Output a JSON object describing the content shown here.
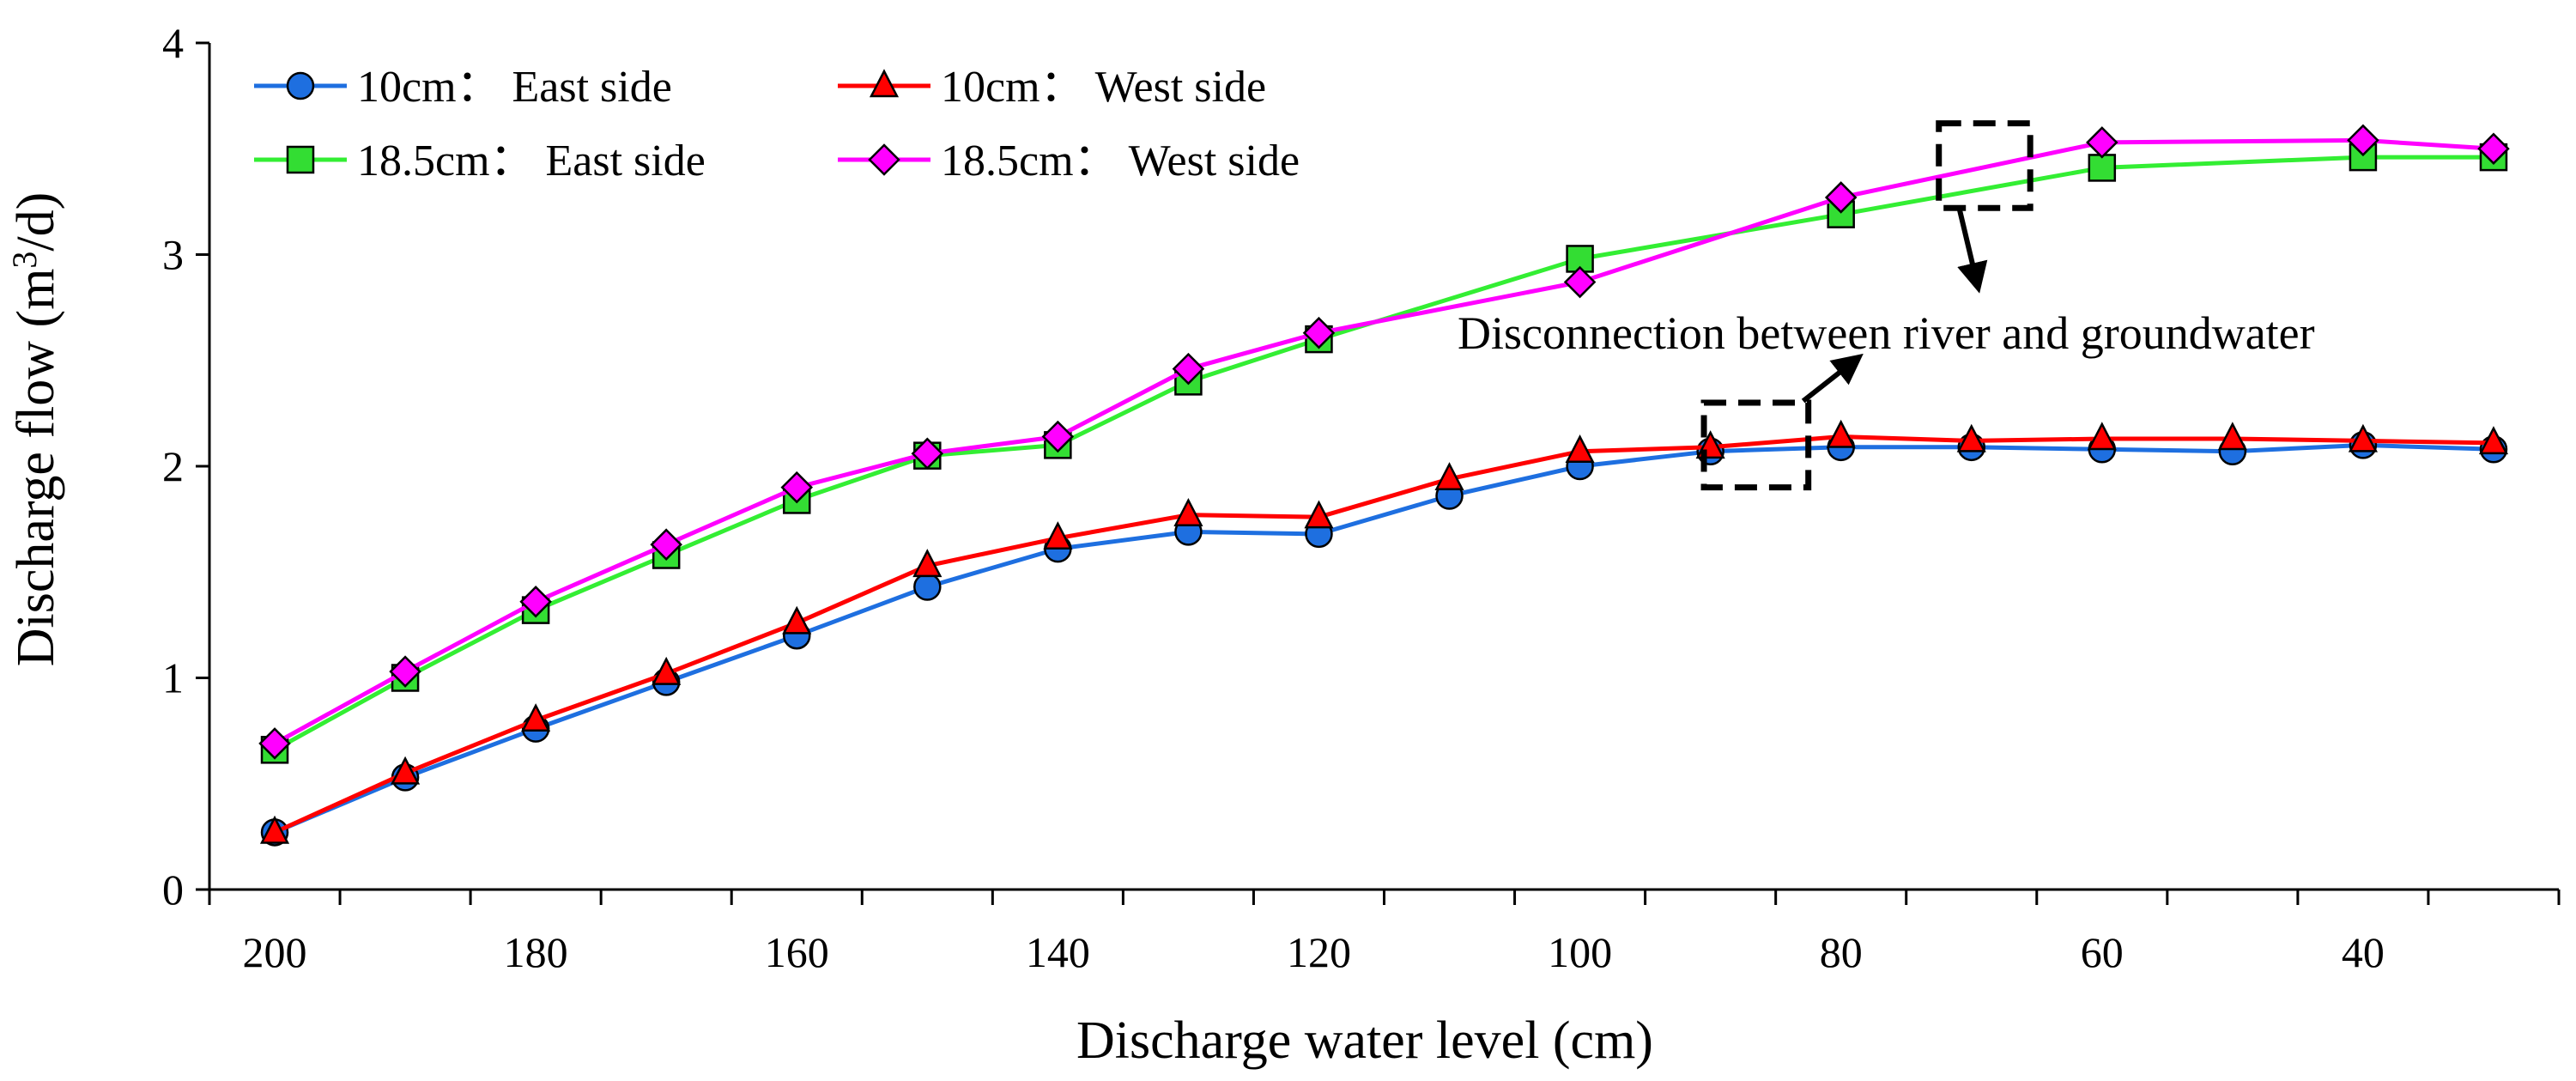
{
  "chart_data": {
    "type": "line",
    "title": "",
    "xlabel": "Discharge water level (cm)",
    "ylabel_prefix": "Discharge flow (m",
    "ylabel_sup": "3",
    "ylabel_suffix": "/d)",
    "x": [
      200,
      190,
      180,
      170,
      160,
      150,
      140,
      130,
      120,
      110,
      100,
      90,
      80,
      70,
      60,
      50,
      40,
      30
    ],
    "xlim": [
      205,
      25
    ],
    "ylim": [
      0,
      4
    ],
    "x_ticks": [
      200,
      180,
      160,
      140,
      120,
      100,
      80,
      60,
      40
    ],
    "y_ticks": [
      0,
      1,
      2,
      3,
      4
    ],
    "series": [
      {
        "name": "10cm： East side",
        "color": "#1e6fe0",
        "marker": "circle",
        "marker_color": "#1e6fe0",
        "x": [
          200,
          190,
          180,
          170,
          160,
          150,
          140,
          130,
          120,
          110,
          100,
          90,
          80,
          70,
          60,
          50,
          40,
          30
        ],
        "values": [
          0.27,
          0.53,
          0.76,
          0.98,
          1.2,
          1.43,
          1.61,
          1.69,
          1.68,
          1.86,
          2.0,
          2.07,
          2.09,
          2.09,
          2.08,
          2.07,
          2.1,
          2.08
        ]
      },
      {
        "name": "10cm： West side",
        "color": "#ff0000",
        "marker": "triangle",
        "marker_color": "#ff0000",
        "x": [
          200,
          190,
          180,
          170,
          160,
          150,
          140,
          130,
          120,
          110,
          100,
          90,
          80,
          70,
          60,
          50,
          40,
          30
        ],
        "values": [
          0.27,
          0.55,
          0.8,
          1.02,
          1.26,
          1.53,
          1.66,
          1.77,
          1.76,
          1.94,
          2.07,
          2.09,
          2.14,
          2.12,
          2.13,
          2.13,
          2.12,
          2.11
        ]
      },
      {
        "name": "18.5cm： East side",
        "color": "#33ee33",
        "marker": "square",
        "marker_color": "#33dd33",
        "x": [
          200,
          190,
          180,
          170,
          160,
          150,
          140,
          100,
          80,
          60,
          40,
          30,
          130,
          120
        ],
        "values_by_x": true,
        "points": [
          [
            200,
            0.66
          ],
          [
            190,
            1.0
          ],
          [
            180,
            1.32
          ],
          [
            170,
            1.58
          ],
          [
            160,
            1.84
          ],
          [
            150,
            2.05
          ],
          [
            140,
            2.1
          ],
          [
            130,
            2.4
          ],
          [
            120,
            2.6
          ],
          [
            100,
            2.98
          ],
          [
            80,
            3.19
          ],
          [
            60,
            3.41
          ],
          [
            40,
            3.46
          ],
          [
            30,
            3.46
          ]
        ]
      },
      {
        "name": "18.5cm： West side",
        "color": "#ff00ff",
        "marker": "diamond",
        "marker_color": "#ff00ff",
        "values_by_x": true,
        "points": [
          [
            200,
            0.69
          ],
          [
            190,
            1.03
          ],
          [
            180,
            1.36
          ],
          [
            170,
            1.63
          ],
          [
            160,
            1.9
          ],
          [
            150,
            2.06
          ],
          [
            140,
            2.14
          ],
          [
            130,
            2.46
          ],
          [
            120,
            2.63
          ],
          [
            100,
            2.87
          ],
          [
            80,
            3.27
          ],
          [
            60,
            3.53
          ],
          [
            40,
            3.54
          ],
          [
            30,
            3.5
          ]
        ]
      }
    ],
    "legend": "top-left",
    "annotations": [
      {
        "text": "Disconnection between river and groundwater",
        "boxes": [
          {
            "x": [
              90.5,
              82.5
            ],
            "y": [
              1.9,
              2.3
            ]
          },
          {
            "x": [
              72.5,
              65.5
            ],
            "y": [
              3.22,
              3.62
            ]
          }
        ]
      }
    ]
  }
}
